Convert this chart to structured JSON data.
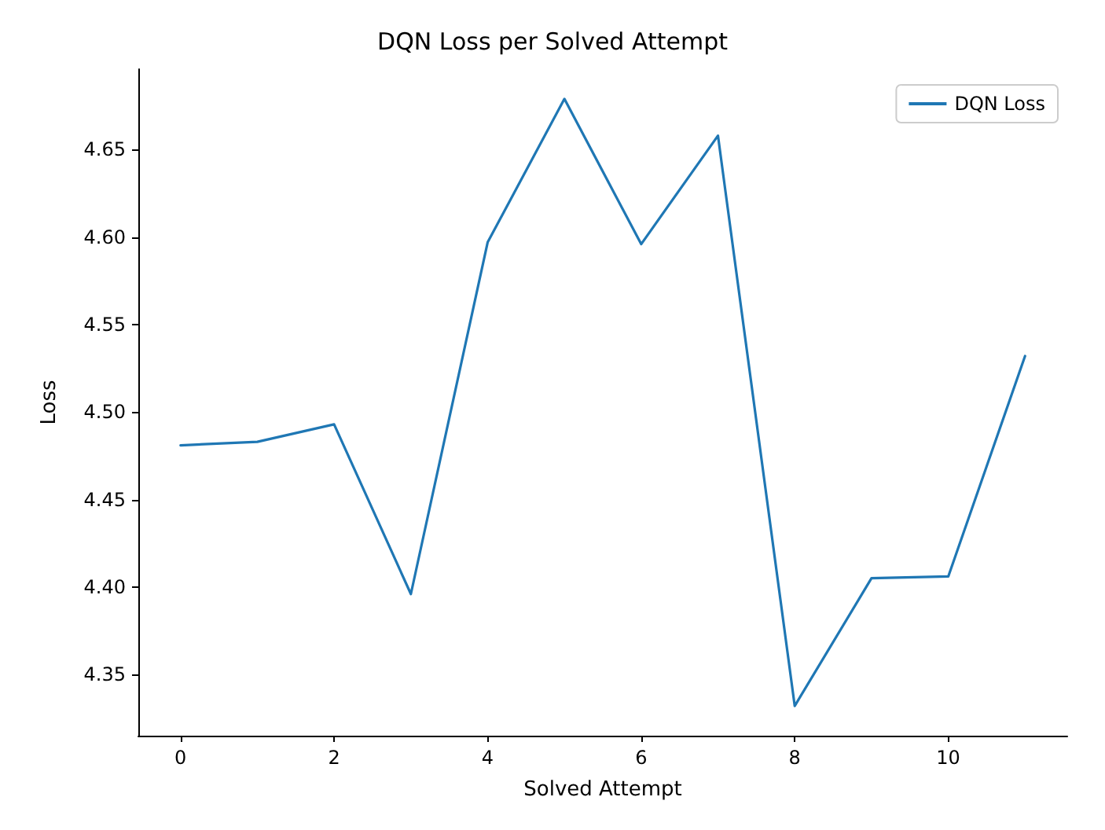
{
  "chart_data": {
    "type": "line",
    "title": "DQN Loss per Solved Attempt",
    "xlabel": "Solved Attempt",
    "ylabel": "Loss",
    "x": [
      0,
      1,
      2,
      3,
      4,
      5,
      6,
      7,
      8,
      9,
      10,
      11
    ],
    "series": [
      {
        "name": "DQN Loss",
        "color": "#1f77b4",
        "values": [
          4.481,
          4.483,
          4.493,
          4.396,
          4.597,
          4.679,
          4.596,
          4.658,
          4.332,
          4.405,
          4.406,
          4.532
        ]
      }
    ],
    "xlim": [
      -0.55,
      11.55
    ],
    "ylim": [
      4.315,
      4.696
    ],
    "xticks": [
      0,
      2,
      4,
      6,
      8,
      10
    ],
    "yticks": [
      4.35,
      {
        "value": 4.4,
        "label": "4.40"
      },
      4.45,
      {
        "value": 4.5,
        "label": "4.50"
      },
      4.55,
      {
        "value": 4.6,
        "label": "4.60"
      },
      4.65
    ],
    "grid": false,
    "legend": "top right",
    "marker": "none",
    "line_style": "solid"
  }
}
